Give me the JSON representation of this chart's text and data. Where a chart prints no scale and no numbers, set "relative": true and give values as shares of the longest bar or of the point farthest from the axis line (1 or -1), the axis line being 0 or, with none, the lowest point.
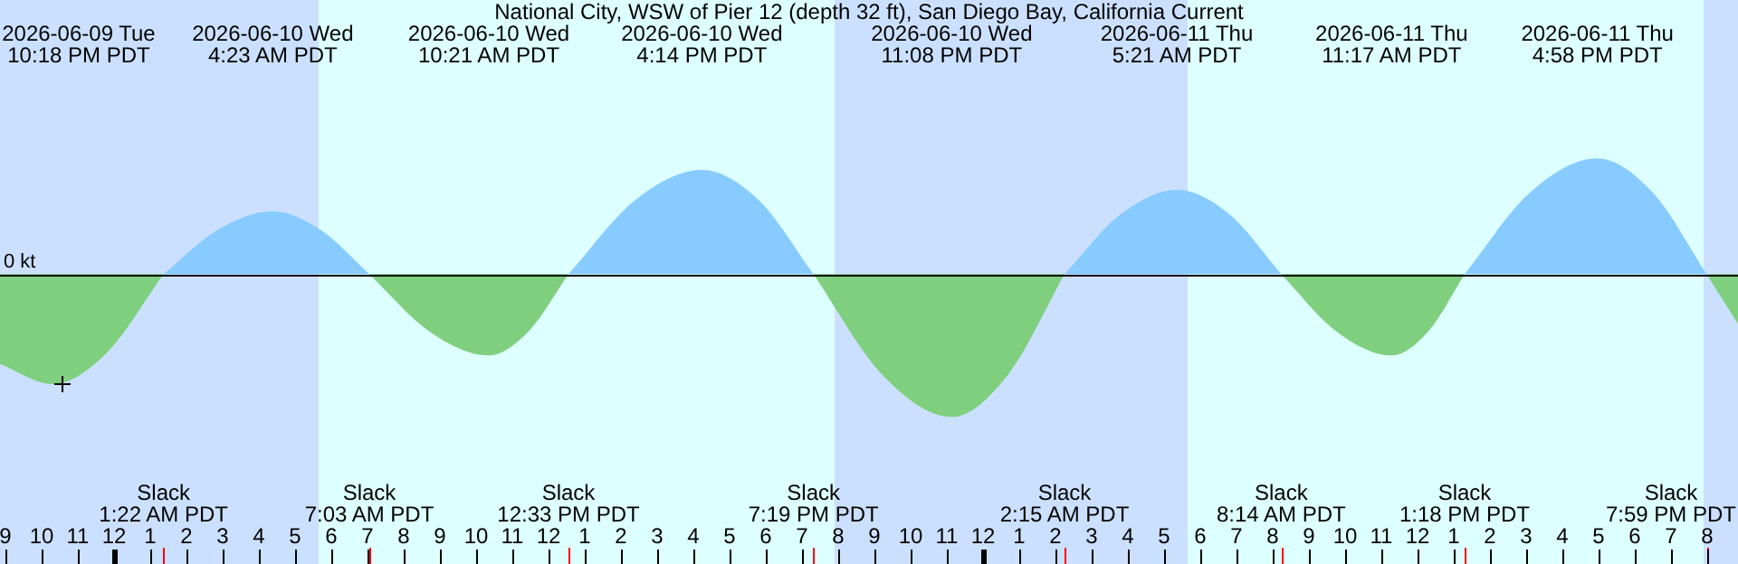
{
  "chart_data": {
    "type": "area",
    "relative": true,
    "title": "National City, WSW of Pier 12 (depth 32 ft), San Diego Bay, California Current",
    "x": [
      "2026-06-09T20:51",
      "2026-06-09T22:18",
      "2026-06-09T23:48",
      "2026-06-10T01:22",
      "2026-06-10T02:52",
      "2026-06-10T04:23",
      "2026-06-10T05:42",
      "2026-06-10T07:03",
      "2026-06-10T08:42",
      "2026-06-10T10:21",
      "2026-06-10T11:27",
      "2026-06-10T12:33",
      "2026-06-10T14:24",
      "2026-06-10T16:14",
      "2026-06-10T17:48",
      "2026-06-10T19:19",
      "2026-06-10T21:12",
      "2026-06-10T23:08",
      "2026-06-11T00:42",
      "2026-06-11T02:15",
      "2026-06-11T03:48",
      "2026-06-11T05:21",
      "2026-06-11T06:48",
      "2026-06-11T08:14",
      "2026-06-11T09:45",
      "2026-06-11T11:17",
      "2026-06-11T12:18",
      "2026-06-11T13:18",
      "2026-06-11T15:06",
      "2026-06-11T16:58",
      "2026-06-11T18:30",
      "2026-06-11T19:59",
      "2026-06-11T20:51"
    ],
    "series": [
      {
        "color": "#87cbff",
        "values": [
          null,
          null,
          null,
          0,
          0.31,
          0.44,
          0.31,
          0,
          null,
          null,
          null,
          0,
          0.52,
          0.73,
          0.52,
          0,
          null,
          null,
          null,
          0,
          0.42,
          0.59,
          0.42,
          0,
          null,
          null,
          null,
          0,
          0.57,
          0.81,
          0.57,
          0,
          null
        ]
      },
      {
        "color": "#7fcf7f",
        "values": [
          -0.63,
          -0.77,
          -0.55,
          0,
          null,
          null,
          null,
          0,
          -0.4,
          -0.57,
          -0.4,
          0,
          null,
          null,
          null,
          0,
          -0.7,
          -1,
          -0.7,
          0,
          null,
          null,
          null,
          0,
          -0.4,
          -0.57,
          -0.4,
          0,
          null,
          null,
          null,
          0,
          -0.35
        ]
      }
    ],
    "xlim": [
      "2026-06-09T20:51",
      "2026-06-11T20:51"
    ],
    "xticks": [
      {
        "value": "2026-06-09T21:00",
        "label": "9"
      },
      {
        "value": "2026-06-09T22:00",
        "label": "10"
      },
      {
        "value": "2026-06-09T23:00",
        "label": "11"
      },
      {
        "value": "2026-06-10T00:00",
        "label": "12"
      },
      {
        "value": "2026-06-10T01:00",
        "label": "1"
      },
      {
        "value": "2026-06-10T02:00",
        "label": "2"
      },
      {
        "value": "2026-06-10T03:00",
        "label": "3"
      },
      {
        "value": "2026-06-10T04:00",
        "label": "4"
      },
      {
        "value": "2026-06-10T05:00",
        "label": "5"
      },
      {
        "value": "2026-06-10T06:00",
        "label": "6"
      },
      {
        "value": "2026-06-10T07:00",
        "label": "7"
      },
      {
        "value": "2026-06-10T08:00",
        "label": "8"
      },
      {
        "value": "2026-06-10T09:00",
        "label": "9"
      },
      {
        "value": "2026-06-10T10:00",
        "label": "10"
      },
      {
        "value": "2026-06-10T11:00",
        "label": "11"
      },
      {
        "value": "2026-06-10T12:00",
        "label": "12"
      },
      {
        "value": "2026-06-10T13:00",
        "label": "1"
      },
      {
        "value": "2026-06-10T14:00",
        "label": "2"
      },
      {
        "value": "2026-06-10T15:00",
        "label": "3"
      },
      {
        "value": "2026-06-10T16:00",
        "label": "4"
      },
      {
        "value": "2026-06-10T17:00",
        "label": "5"
      },
      {
        "value": "2026-06-10T18:00",
        "label": "6"
      },
      {
        "value": "2026-06-10T19:00",
        "label": "7"
      },
      {
        "value": "2026-06-10T20:00",
        "label": "8"
      },
      {
        "value": "2026-06-10T21:00",
        "label": "9"
      },
      {
        "value": "2026-06-10T22:00",
        "label": "10"
      },
      {
        "value": "2026-06-10T23:00",
        "label": "11"
      },
      {
        "value": "2026-06-11T00:00",
        "label": "12"
      },
      {
        "value": "2026-06-11T01:00",
        "label": "1"
      },
      {
        "value": "2026-06-11T02:00",
        "label": "2"
      },
      {
        "value": "2026-06-11T03:00",
        "label": "3"
      },
      {
        "value": "2026-06-11T04:00",
        "label": "4"
      },
      {
        "value": "2026-06-11T05:00",
        "label": "5"
      },
      {
        "value": "2026-06-11T06:00",
        "label": "6"
      },
      {
        "value": "2026-06-11T07:00",
        "label": "7"
      },
      {
        "value": "2026-06-11T08:00",
        "label": "8"
      },
      {
        "value": "2026-06-11T09:00",
        "label": "9"
      },
      {
        "value": "2026-06-11T10:00",
        "label": "10"
      },
      {
        "value": "2026-06-11T11:00",
        "label": "11"
      },
      {
        "value": "2026-06-11T12:00",
        "label": "12"
      },
      {
        "value": "2026-06-11T13:00",
        "label": "1"
      },
      {
        "value": "2026-06-11T14:00",
        "label": "2"
      },
      {
        "value": "2026-06-11T15:00",
        "label": "3"
      },
      {
        "value": "2026-06-11T16:00",
        "label": "4"
      },
      {
        "value": "2026-06-11T17:00",
        "label": "5"
      },
      {
        "value": "2026-06-11T18:00",
        "label": "6"
      },
      {
        "value": "2026-06-11T19:00",
        "label": "7"
      },
      {
        "value": "2026-06-11T20:00",
        "label": "8"
      }
    ],
    "bands": [
      {
        "axis": "x",
        "from": "2026-06-09T20:51",
        "to": "2026-06-10T05:39",
        "color": "#cbe0ff"
      },
      {
        "axis": "x",
        "from": "2026-06-10T05:39",
        "to": "2026-06-10T19:54",
        "color": "#ddffff"
      },
      {
        "axis": "x",
        "from": "2026-06-10T19:54",
        "to": "2026-06-11T05:39",
        "color": "#cbe0ff"
      },
      {
        "axis": "x",
        "from": "2026-06-11T05:39",
        "to": "2026-06-11T19:54",
        "color": "#ddffff"
      },
      {
        "axis": "x",
        "from": "2026-06-11T19:54",
        "to": "2026-06-11T20:51",
        "color": "#cbe0ff"
      }
    ],
    "ref_lines": [
      {
        "axis": "y",
        "value": 0,
        "label": "0 kt",
        "color": "#000000"
      }
    ],
    "marker": "none",
    "annotations": [
      "2026-06-09 Tue\n10:18 PM PDT",
      "2026-06-10 Wed\n4:23 AM PDT",
      "2026-06-10 Wed\n10:21 AM PDT",
      "2026-06-10 Wed\n4:14 PM PDT",
      "2026-06-10 Wed\n11:08 PM PDT",
      "2026-06-11 Thu\n5:21 AM PDT",
      "2026-06-11 Thu\n11:17 AM PDT",
      "2026-06-11 Thu\n4:58 PM PDT",
      {
        "text": "Slack\n1:22 AM PDT",
        "x": "2026-06-10T01:22"
      },
      {
        "text": "Slack\n7:03 AM PDT",
        "x": "2026-06-10T07:03"
      },
      {
        "text": "Slack\n12:33 PM PDT",
        "x": "2026-06-10T12:33"
      },
      {
        "text": "Slack\n7:19 PM PDT",
        "x": "2026-06-10T19:19"
      },
      {
        "text": "Slack\n2:15 AM PDT",
        "x": "2026-06-11T02:15"
      },
      {
        "text": "Slack\n8:14 AM PDT",
        "x": "2026-06-11T08:14"
      },
      {
        "text": "Slack\n1:18 PM PDT",
        "x": "2026-06-11T13:18"
      },
      {
        "text": "Slack\n7:59 PM PDT",
        "x": "2026-06-11T19:59"
      }
    ]
  }
}
